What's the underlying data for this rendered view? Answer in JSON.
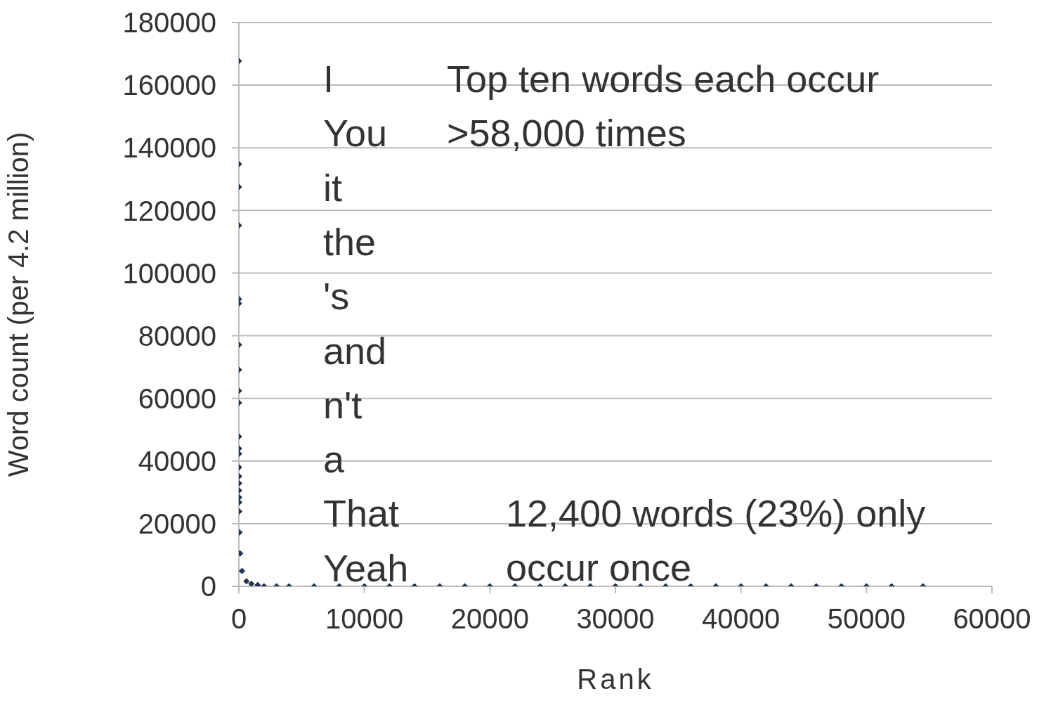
{
  "chart_data": {
    "type": "scatter",
    "xlabel": "Rank",
    "ylabel": "Word count (per 4.2 million)",
    "x": [
      1,
      2,
      3,
      4,
      5,
      6,
      7,
      8,
      9,
      10,
      11,
      12,
      13,
      14,
      16,
      18,
      20,
      22,
      25,
      30,
      50,
      100,
      250,
      600,
      1000,
      1500,
      2000,
      3000,
      4000,
      6000,
      8000,
      10000,
      12000,
      14000,
      16000,
      18000,
      20000,
      22000,
      24000,
      26000,
      28000,
      30000,
      32000,
      34000,
      36000,
      38000,
      40000,
      42000,
      44000,
      46000,
      48000,
      50000,
      52000,
      54500
    ],
    "series": [
      {
        "color": "#1f3a5f",
        "values": [
          167700,
          134800,
          127500,
          115200,
          91700,
          90300,
          77100,
          69100,
          62400,
          58600,
          47800,
          44000,
          42300,
          38000,
          35100,
          32900,
          30600,
          28400,
          26800,
          23900,
          17200,
          10500,
          4900,
          1600,
          800,
          400,
          0,
          0,
          0,
          0,
          0,
          0,
          0,
          0,
          0,
          0,
          0,
          0,
          0,
          0,
          0,
          0,
          0,
          0,
          0,
          0,
          0,
          0,
          0,
          0,
          0,
          0,
          0,
          0
        ]
      }
    ],
    "xlim": [
      0,
      60000
    ],
    "xticks": [
      0,
      10000,
      20000,
      30000,
      40000,
      50000,
      60000
    ],
    "ylim": [
      0,
      180000
    ],
    "yticks": [
      0,
      20000,
      40000,
      60000,
      80000,
      100000,
      120000,
      140000,
      160000,
      180000
    ],
    "grid": "y",
    "marker": "diamond",
    "annotations": [
      "I",
      "You",
      "it",
      "the",
      "'s",
      "and",
      "n't",
      "a",
      "That",
      "Yeah",
      "Top ten words each occur >58,000 times",
      "12,400 words (23%) only occur once"
    ]
  }
}
